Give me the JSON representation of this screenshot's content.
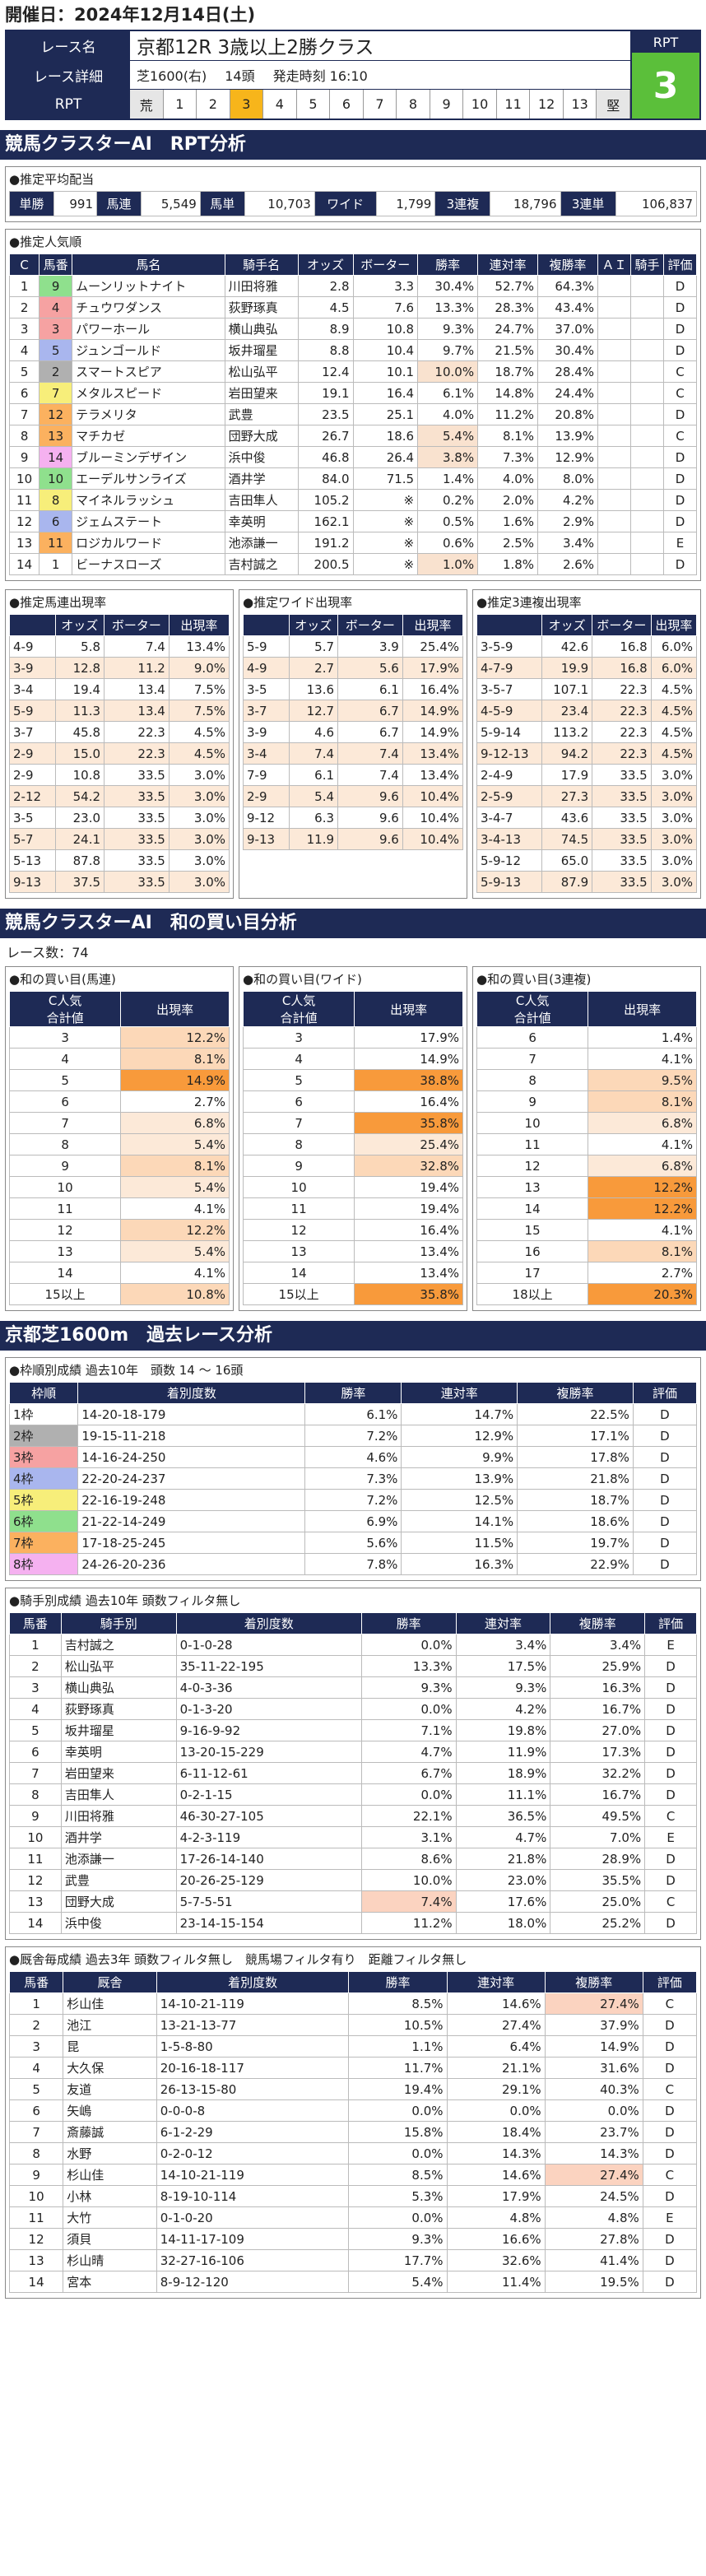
{
  "date_label": "開催日：2024年12月14日(土)",
  "race": {
    "name_label": "レース名",
    "name": "京都12R 3歳以上2勝クラス",
    "detail_label": "レース詳細",
    "course": "芝1600(右)",
    "heads": "14頭",
    "start": "発走時刻 16:10",
    "rpt_label": "RPT",
    "rpt_cells": [
      "荒",
      "1",
      "2",
      "3",
      "4",
      "5",
      "6",
      "7",
      "8",
      "9",
      "10",
      "11",
      "12",
      "13",
      "堅"
    ],
    "rpt_active": 3,
    "rpt_badge_label": "RPT",
    "rpt_value": "3"
  },
  "s1_title": "競馬クラスターAI　RPT分析",
  "payout": {
    "title": "●推定平均配当",
    "items": [
      [
        "単勝",
        "991"
      ],
      [
        "馬連",
        "5,549"
      ],
      [
        "馬単",
        "10,703"
      ],
      [
        "ワイド",
        "1,799"
      ],
      [
        "3連複",
        "18,796"
      ],
      [
        "3連単",
        "106,837"
      ]
    ]
  },
  "popularity": {
    "title": "●推定人気順",
    "headers": [
      "C",
      "馬番",
      "馬名",
      "騎手名",
      "オッズ",
      "ボーター",
      "勝率",
      "連対率",
      "複勝率",
      "ＡＩ",
      "騎手",
      "評価"
    ],
    "rows": [
      [
        "1",
        "9",
        "ムーンリットナイト",
        "川田将雅",
        "2.8",
        "3.3",
        "30.4%",
        "52.7%",
        "64.3%",
        "",
        "",
        "D"
      ],
      [
        "2",
        "4",
        "チュウワダンス",
        "荻野琢真",
        "4.5",
        "7.6",
        "13.3%",
        "28.3%",
        "43.4%",
        "",
        "",
        "D"
      ],
      [
        "3",
        "3",
        "パワーホール",
        "横山典弘",
        "8.9",
        "10.8",
        "9.3%",
        "24.7%",
        "37.0%",
        "",
        "",
        "D"
      ],
      [
        "4",
        "5",
        "ジュンゴールド",
        "坂井瑠星",
        "8.8",
        "10.4",
        "9.7%",
        "21.5%",
        "30.4%",
        "",
        "",
        "D"
      ],
      [
        "5",
        "2",
        "スマートスピア",
        "松山弘平",
        "12.4",
        "10.1",
        "10.0%",
        "18.7%",
        "28.4%",
        "",
        "",
        "C"
      ],
      [
        "6",
        "7",
        "メタルスピード",
        "岩田望来",
        "19.1",
        "16.4",
        "6.1%",
        "14.8%",
        "24.4%",
        "",
        "",
        "C"
      ],
      [
        "7",
        "12",
        "テラメリタ",
        "武豊",
        "23.5",
        "25.1",
        "4.0%",
        "11.2%",
        "20.8%",
        "",
        "",
        "D"
      ],
      [
        "8",
        "13",
        "マチカゼ",
        "団野大成",
        "26.7",
        "18.6",
        "5.4%",
        "8.1%",
        "13.9%",
        "",
        "",
        "C"
      ],
      [
        "9",
        "14",
        "ブルーミンデザイン",
        "浜中俊",
        "46.8",
        "26.4",
        "3.8%",
        "7.3%",
        "12.9%",
        "",
        "",
        "D"
      ],
      [
        "10",
        "10",
        "エーデルサンライズ",
        "酒井学",
        "84.0",
        "71.5",
        "1.4%",
        "4.0%",
        "8.0%",
        "",
        "",
        "D"
      ],
      [
        "11",
        "8",
        "マイネルラッシュ",
        "吉田隼人",
        "105.2",
        "※",
        "0.2%",
        "2.0%",
        "4.2%",
        "",
        "",
        "D"
      ],
      [
        "12",
        "6",
        "ジェムステート",
        "幸英明",
        "162.1",
        "※",
        "0.5%",
        "1.6%",
        "2.9%",
        "",
        "",
        "D"
      ],
      [
        "13",
        "11",
        "ロジカルワード",
        "池添謙一",
        "191.2",
        "※",
        "0.6%",
        "2.5%",
        "3.4%",
        "",
        "",
        "E"
      ],
      [
        "14",
        "1",
        "ビーナスローズ",
        "吉村誠之",
        "200.5",
        "※",
        "1.0%",
        "1.8%",
        "2.6%",
        "",
        "",
        "D"
      ]
    ],
    "waku": [
      6,
      3,
      3,
      4,
      2,
      5,
      7,
      7,
      8,
      6,
      5,
      4,
      7,
      1
    ],
    "hl_cells": [
      [
        4,
        6
      ],
      [
        7,
        6
      ],
      [
        8,
        6
      ],
      [
        13,
        6
      ]
    ]
  },
  "est_umaren": {
    "title": "●推定馬連出現率",
    "headers": [
      "",
      "オッズ",
      "ボーター",
      "出現率"
    ],
    "rows": [
      [
        "4-9",
        "5.8",
        "7.4",
        "13.4%"
      ],
      [
        "3-9",
        "12.8",
        "11.2",
        "9.0%"
      ],
      [
        "3-4",
        "19.4",
        "13.4",
        "7.5%"
      ],
      [
        "5-9",
        "11.3",
        "13.4",
        "7.5%"
      ],
      [
        "3-7",
        "45.8",
        "22.3",
        "4.5%"
      ],
      [
        "2-9",
        "15.0",
        "22.3",
        "4.5%"
      ],
      [
        "2-9",
        "10.8",
        "33.5",
        "3.0%"
      ],
      [
        "2-12",
        "54.2",
        "33.5",
        "3.0%"
      ],
      [
        "3-5",
        "23.0",
        "33.5",
        "3.0%"
      ],
      [
        "5-7",
        "24.1",
        "33.5",
        "3.0%"
      ],
      [
        "5-13",
        "87.8",
        "33.5",
        "3.0%"
      ],
      [
        "9-13",
        "37.5",
        "33.5",
        "3.0%"
      ]
    ]
  },
  "est_wide": {
    "title": "●推定ワイド出現率",
    "headers": [
      "",
      "オッズ",
      "ボーター",
      "出現率"
    ],
    "rows": [
      [
        "5-9",
        "5.7",
        "3.9",
        "25.4%"
      ],
      [
        "4-9",
        "2.7",
        "5.6",
        "17.9%"
      ],
      [
        "3-5",
        "13.6",
        "6.1",
        "16.4%"
      ],
      [
        "3-7",
        "12.7",
        "6.7",
        "14.9%"
      ],
      [
        "3-9",
        "4.6",
        "6.7",
        "14.9%"
      ],
      [
        "3-4",
        "7.4",
        "7.4",
        "13.4%"
      ],
      [
        "7-9",
        "6.1",
        "7.4",
        "13.4%"
      ],
      [
        "2-9",
        "5.4",
        "9.6",
        "10.4%"
      ],
      [
        "9-12",
        "6.3",
        "9.6",
        "10.4%"
      ],
      [
        "9-13",
        "11.9",
        "9.6",
        "10.4%"
      ]
    ]
  },
  "est_sanren": {
    "title": "●推定3連複出現率",
    "headers": [
      "",
      "オッズ",
      "ボーター",
      "出現率"
    ],
    "rows": [
      [
        "3-5-9",
        "42.6",
        "16.8",
        "6.0%"
      ],
      [
        "4-7-9",
        "19.9",
        "16.8",
        "6.0%"
      ],
      [
        "3-5-7",
        "107.1",
        "22.3",
        "4.5%"
      ],
      [
        "4-5-9",
        "23.4",
        "22.3",
        "4.5%"
      ],
      [
        "5-9-14",
        "113.2",
        "22.3",
        "4.5%"
      ],
      [
        "9-12-13",
        "94.2",
        "22.3",
        "4.5%"
      ],
      [
        "2-4-9",
        "17.9",
        "33.5",
        "3.0%"
      ],
      [
        "2-5-9",
        "27.3",
        "33.5",
        "3.0%"
      ],
      [
        "3-4-7",
        "43.6",
        "33.5",
        "3.0%"
      ],
      [
        "3-4-13",
        "74.5",
        "33.5",
        "3.0%"
      ],
      [
        "5-9-12",
        "65.0",
        "33.5",
        "3.0%"
      ],
      [
        "5-9-13",
        "87.9",
        "33.5",
        "3.0%"
      ]
    ]
  },
  "s2_title": "競馬クラスターAI　和の買い目分析",
  "race_count": "レース数：74",
  "sum_umaren": {
    "title": "●和の買い目(馬連)",
    "headers": [
      "C人気\n合計値",
      "出現率"
    ],
    "rows": [
      [
        "3",
        "12.2%",
        2
      ],
      [
        "4",
        "8.1%",
        2
      ],
      [
        "5",
        "14.9%",
        1
      ],
      [
        "6",
        "2.7%",
        0
      ],
      [
        "7",
        "6.8%",
        3
      ],
      [
        "8",
        "5.4%",
        3
      ],
      [
        "9",
        "8.1%",
        2
      ],
      [
        "10",
        "5.4%",
        3
      ],
      [
        "11",
        "4.1%",
        0
      ],
      [
        "12",
        "12.2%",
        2
      ],
      [
        "13",
        "5.4%",
        3
      ],
      [
        "14",
        "4.1%",
        0
      ],
      [
        "15以上",
        "10.8%",
        2
      ]
    ]
  },
  "sum_wide": {
    "title": "●和の買い目(ワイド)",
    "headers": [
      "C人気\n合計値",
      "出現率"
    ],
    "rows": [
      [
        "3",
        "17.9%",
        0
      ],
      [
        "4",
        "14.9%",
        0
      ],
      [
        "5",
        "38.8%",
        1
      ],
      [
        "6",
        "16.4%",
        0
      ],
      [
        "7",
        "35.8%",
        1
      ],
      [
        "8",
        "25.4%",
        3
      ],
      [
        "9",
        "32.8%",
        2
      ],
      [
        "10",
        "19.4%",
        0
      ],
      [
        "11",
        "19.4%",
        0
      ],
      [
        "12",
        "16.4%",
        0
      ],
      [
        "13",
        "13.4%",
        0
      ],
      [
        "14",
        "13.4%",
        0
      ],
      [
        "15以上",
        "35.8%",
        1
      ]
    ]
  },
  "sum_sanren": {
    "title": "●和の買い目(3連複)",
    "headers": [
      "C人気\n合計値",
      "出現率"
    ],
    "rows": [
      [
        "6",
        "1.4%",
        0
      ],
      [
        "7",
        "4.1%",
        0
      ],
      [
        "8",
        "9.5%",
        2
      ],
      [
        "9",
        "8.1%",
        2
      ],
      [
        "10",
        "6.8%",
        3
      ],
      [
        "11",
        "4.1%",
        0
      ],
      [
        "12",
        "6.8%",
        3
      ],
      [
        "13",
        "12.2%",
        1
      ],
      [
        "14",
        "12.2%",
        1
      ],
      [
        "15",
        "4.1%",
        0
      ],
      [
        "16",
        "8.1%",
        2
      ],
      [
        "17",
        "2.7%",
        0
      ],
      [
        "18以上",
        "20.3%",
        1
      ]
    ]
  },
  "s3_title": "京都芝1600m　過去レース分析",
  "waku_stats": {
    "title": "●枠順別成績 過去10年　頭数 14 ～ 16頭",
    "headers": [
      "枠順",
      "着別度数",
      "勝率",
      "連対率",
      "複勝率",
      "評価"
    ],
    "rows": [
      [
        "1枠",
        "14-20-18-179",
        "6.1%",
        "14.7%",
        "22.5%",
        "D"
      ],
      [
        "2枠",
        "19-15-11-218",
        "7.2%",
        "12.9%",
        "17.1%",
        "D"
      ],
      [
        "3枠",
        "14-16-24-250",
        "4.6%",
        "9.9%",
        "17.8%",
        "D"
      ],
      [
        "4枠",
        "22-20-24-237",
        "7.3%",
        "13.9%",
        "21.8%",
        "D"
      ],
      [
        "5枠",
        "22-16-19-248",
        "7.2%",
        "12.5%",
        "18.7%",
        "D"
      ],
      [
        "6枠",
        "21-22-14-249",
        "6.9%",
        "14.1%",
        "18.6%",
        "D"
      ],
      [
        "7枠",
        "17-18-25-245",
        "5.6%",
        "11.5%",
        "19.7%",
        "D"
      ],
      [
        "8枠",
        "24-26-20-236",
        "7.8%",
        "16.3%",
        "22.9%",
        "D"
      ]
    ]
  },
  "jockey_stats": {
    "title": "●騎手別成績 過去10年 頭数フィルタ無し",
    "headers": [
      "馬番",
      "騎手別",
      "着別度数",
      "勝率",
      "連対率",
      "複勝率",
      "評価"
    ],
    "rows": [
      [
        "1",
        "吉村誠之",
        "0-1-0-28",
        "0.0%",
        "3.4%",
        "3.4%",
        "E"
      ],
      [
        "2",
        "松山弘平",
        "35-11-22-195",
        "13.3%",
        "17.5%",
        "25.9%",
        "D"
      ],
      [
        "3",
        "横山典弘",
        "4-0-3-36",
        "9.3%",
        "9.3%",
        "16.3%",
        "D"
      ],
      [
        "4",
        "荻野琢真",
        "0-1-3-20",
        "0.0%",
        "4.2%",
        "16.7%",
        "D"
      ],
      [
        "5",
        "坂井瑠星",
        "9-16-9-92",
        "7.1%",
        "19.8%",
        "27.0%",
        "D"
      ],
      [
        "6",
        "幸英明",
        "13-20-15-229",
        "4.7%",
        "11.9%",
        "17.3%",
        "D"
      ],
      [
        "7",
        "岩田望来",
        "6-11-12-61",
        "6.7%",
        "18.9%",
        "32.2%",
        "D"
      ],
      [
        "8",
        "吉田隼人",
        "0-2-1-15",
        "0.0%",
        "11.1%",
        "16.7%",
        "D"
      ],
      [
        "9",
        "川田将雅",
        "46-30-27-105",
        "22.1%",
        "36.5%",
        "49.5%",
        "C"
      ],
      [
        "10",
        "酒井学",
        "4-2-3-119",
        "3.1%",
        "4.7%",
        "7.0%",
        "E"
      ],
      [
        "11",
        "池添謙一",
        "17-26-14-140",
        "8.6%",
        "21.8%",
        "28.9%",
        "D"
      ],
      [
        "12",
        "武豊",
        "20-26-25-129",
        "10.0%",
        "23.0%",
        "35.5%",
        "D"
      ],
      [
        "13",
        "団野大成",
        "5-7-5-51",
        "7.4%",
        "17.6%",
        "25.0%",
        "C"
      ],
      [
        "14",
        "浜中俊",
        "23-14-15-154",
        "11.2%",
        "18.0%",
        "25.2%",
        "D"
      ]
    ],
    "hl": [
      [
        12,
        3
      ]
    ]
  },
  "trainer_stats": {
    "title": "●厩舎毎成績 過去3年 頭数フィルタ無し　競馬場フィルタ有り　距離フィルタ無し",
    "headers": [
      "馬番",
      "厩舎",
      "着別度数",
      "勝率",
      "連対率",
      "複勝率",
      "評価"
    ],
    "rows": [
      [
        "1",
        "杉山佳",
        "14-10-21-119",
        "8.5%",
        "14.6%",
        "27.4%",
        "C"
      ],
      [
        "2",
        "池江",
        "13-21-13-77",
        "10.5%",
        "27.4%",
        "37.9%",
        "D"
      ],
      [
        "3",
        "昆",
        "1-5-8-80",
        "1.1%",
        "6.4%",
        "14.9%",
        "D"
      ],
      [
        "4",
        "大久保",
        "20-16-18-117",
        "11.7%",
        "21.1%",
        "31.6%",
        "D"
      ],
      [
        "5",
        "友道",
        "26-13-15-80",
        "19.4%",
        "29.1%",
        "40.3%",
        "C"
      ],
      [
        "6",
        "矢嶋",
        "0-0-0-8",
        "0.0%",
        "0.0%",
        "0.0%",
        "D"
      ],
      [
        "7",
        "斎藤誠",
        "6-1-2-29",
        "15.8%",
        "18.4%",
        "23.7%",
        "D"
      ],
      [
        "8",
        "水野",
        "0-2-0-12",
        "0.0%",
        "14.3%",
        "14.3%",
        "D"
      ],
      [
        "9",
        "杉山佳",
        "14-10-21-119",
        "8.5%",
        "14.6%",
        "27.4%",
        "C"
      ],
      [
        "10",
        "小林",
        "8-19-10-114",
        "5.3%",
        "17.9%",
        "24.5%",
        "D"
      ],
      [
        "11",
        "大竹",
        "0-1-0-20",
        "0.0%",
        "4.8%",
        "4.8%",
        "E"
      ],
      [
        "12",
        "須貝",
        "14-11-17-109",
        "9.3%",
        "16.6%",
        "27.8%",
        "D"
      ],
      [
        "13",
        "杉山晴",
        "32-27-16-106",
        "17.7%",
        "32.6%",
        "41.4%",
        "D"
      ],
      [
        "14",
        "宮本",
        "8-9-12-120",
        "5.4%",
        "11.4%",
        "19.5%",
        "D"
      ]
    ],
    "hl": [
      [
        0,
        5
      ],
      [
        8,
        5
      ]
    ]
  }
}
